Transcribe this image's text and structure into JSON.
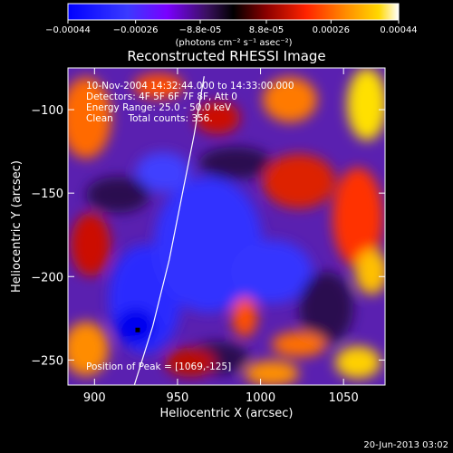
{
  "colorbar": {
    "ticks": [
      "-0.00044",
      "-0.00026",
      "-8.8e-05",
      "8.8e-05",
      "0.00026",
      "0.00044"
    ],
    "units": "(photons cm⁻² s⁻¹ asec⁻²)",
    "range": [
      -0.00044,
      0.00044
    ]
  },
  "chart_data": {
    "type": "heatmap",
    "title": "Reconstructed RHESSI Image",
    "xlabel": "Heliocentric X (arcsec)",
    "ylabel": "Heliocentric Y (arcsec)",
    "xlim": [
      884,
      1075
    ],
    "ylim": [
      -265,
      -75
    ],
    "xticks": [
      900,
      950,
      1000,
      1050
    ],
    "yticks": [
      -100,
      -150,
      -200,
      -250
    ],
    "xtick_labels": [
      "900",
      "950",
      "1000",
      "1050"
    ],
    "ytick_labels": [
      "−100",
      "−150",
      "−200",
      "−250"
    ],
    "limb_curve": [
      [
        924,
        -265
      ],
      [
        935,
        -230
      ],
      [
        945,
        -190
      ],
      [
        953,
        -150
      ],
      [
        960,
        -115
      ],
      [
        966,
        -80
      ]
    ],
    "annotations": {
      "time": "10-Nov-2004 14:32:44.000 to 14:33:00.000",
      "detectors": "Detectors: 4F 5F 6F 7F 8F, Att 0",
      "energy": "Energy Range: 25.0 - 50.0 keV",
      "clean": "Clean     Total counts: 356.",
      "peak": "Position of Peak = [1069,-125]"
    },
    "peak": [
      1069,
      -125
    ],
    "colorscale": [
      "#0000ff",
      "#3a3aff",
      "#7000ff",
      "#4a1a8c",
      "#000000",
      "#8b0000",
      "#ff2a00",
      "#ff8c00",
      "#ffd000",
      "#ffffff"
    ]
  },
  "footer": {
    "date": "20-Jun-2013 03:02"
  }
}
